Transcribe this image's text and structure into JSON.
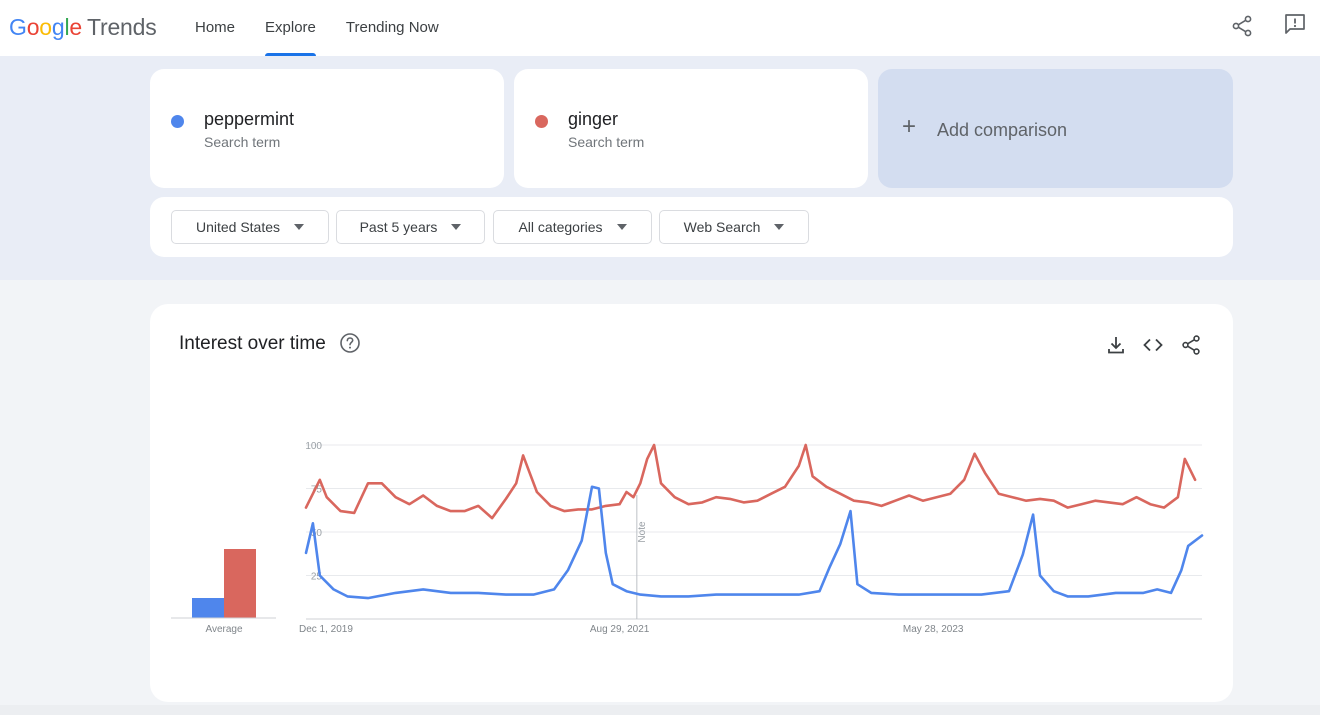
{
  "header": {
    "logo_text": "Google",
    "logo_suffix": "Trends",
    "nav": [
      {
        "label": "Home",
        "active": false
      },
      {
        "label": "Explore",
        "active": true
      },
      {
        "label": "Trending Now",
        "active": false
      }
    ],
    "icons": [
      "share-icon",
      "feedback-icon"
    ]
  },
  "compare": {
    "terms": [
      {
        "name": "peppermint",
        "type": "Search term",
        "color": "#4f86ec"
      },
      {
        "name": "ginger",
        "type": "Search term",
        "color": "#d9675e"
      }
    ],
    "add_label": "Add comparison"
  },
  "filters": [
    {
      "label": "United States"
    },
    {
      "label": "Past 5 years"
    },
    {
      "label": "All categories"
    },
    {
      "label": "Web Search"
    }
  ],
  "interest": {
    "title": "Interest over time",
    "icons": [
      "help-icon",
      "download-icon",
      "embed-icon",
      "share-icon"
    ],
    "average_label": "Average",
    "note_label": "Note"
  },
  "chart_data": {
    "type": "line",
    "xlabel": "",
    "ylabel": "",
    "ylim": [
      0,
      100
    ],
    "y_ticks": [
      25,
      50,
      75,
      100
    ],
    "x_tick_labels": [
      "Dec 1, 2019",
      "Aug 29, 2021",
      "May 28, 2023"
    ],
    "x_range": [
      "2019-12-01",
      "2024-11-24"
    ],
    "note_date": "2021-10-03",
    "grid": true,
    "legend": "none",
    "average": [
      {
        "name": "peppermint",
        "value": 20,
        "color": "#4f86ec"
      },
      {
        "name": "ginger",
        "value": 69,
        "color": "#d9675e"
      }
    ],
    "series": [
      {
        "name": "peppermint",
        "color": "#4f86ec",
        "points": [
          [
            "2019-12-01",
            38
          ],
          [
            "2019-12-15",
            55
          ],
          [
            "2019-12-29",
            25
          ],
          [
            "2020-01-26",
            17
          ],
          [
            "2020-02-23",
            13
          ],
          [
            "2020-04-05",
            12
          ],
          [
            "2020-05-31",
            15
          ],
          [
            "2020-07-26",
            17
          ],
          [
            "2020-09-20",
            15
          ],
          [
            "2020-11-15",
            15
          ],
          [
            "2021-01-10",
            14
          ],
          [
            "2021-03-07",
            14
          ],
          [
            "2021-04-18",
            17
          ],
          [
            "2021-05-16",
            28
          ],
          [
            "2021-06-13",
            45
          ],
          [
            "2021-07-04",
            76
          ],
          [
            "2021-07-18",
            75
          ],
          [
            "2021-08-01",
            38
          ],
          [
            "2021-08-15",
            20
          ],
          [
            "2021-09-12",
            16
          ],
          [
            "2021-10-10",
            14
          ],
          [
            "2021-11-21",
            13
          ],
          [
            "2022-01-16",
            13
          ],
          [
            "2022-03-13",
            14
          ],
          [
            "2022-05-08",
            14
          ],
          [
            "2022-07-03",
            14
          ],
          [
            "2022-08-28",
            14
          ],
          [
            "2022-10-09",
            16
          ],
          [
            "2022-10-30",
            30
          ],
          [
            "2022-11-20",
            43
          ],
          [
            "2022-12-11",
            62
          ],
          [
            "2022-12-25",
            20
          ],
          [
            "2023-01-22",
            15
          ],
          [
            "2023-03-19",
            14
          ],
          [
            "2023-05-14",
            14
          ],
          [
            "2023-07-09",
            14
          ],
          [
            "2023-09-03",
            14
          ],
          [
            "2023-10-29",
            16
          ],
          [
            "2023-11-26",
            37
          ],
          [
            "2023-12-17",
            60
          ],
          [
            "2023-12-31",
            25
          ],
          [
            "2024-01-28",
            16
          ],
          [
            "2024-02-25",
            13
          ],
          [
            "2024-04-07",
            13
          ],
          [
            "2024-06-02",
            15
          ],
          [
            "2024-07-28",
            15
          ],
          [
            "2024-08-25",
            17
          ],
          [
            "2024-09-22",
            15
          ],
          [
            "2024-10-13",
            28
          ],
          [
            "2024-10-27",
            42
          ],
          [
            "2024-11-24",
            48
          ]
        ]
      },
      {
        "name": "ginger",
        "color": "#d9675e",
        "points": [
          [
            "2019-12-01",
            64
          ],
          [
            "2019-12-15",
            72
          ],
          [
            "2019-12-29",
            80
          ],
          [
            "2020-01-12",
            70
          ],
          [
            "2020-02-09",
            62
          ],
          [
            "2020-03-08",
            61
          ],
          [
            "2020-04-05",
            78
          ],
          [
            "2020-05-03",
            78
          ],
          [
            "2020-05-31",
            70
          ],
          [
            "2020-06-28",
            66
          ],
          [
            "2020-07-26",
            71
          ],
          [
            "2020-08-23",
            65
          ],
          [
            "2020-09-20",
            62
          ],
          [
            "2020-10-18",
            62
          ],
          [
            "2020-11-15",
            65
          ],
          [
            "2020-12-13",
            58
          ],
          [
            "2021-01-10",
            69
          ],
          [
            "2021-01-31",
            78
          ],
          [
            "2021-02-14",
            94
          ],
          [
            "2021-03-14",
            73
          ],
          [
            "2021-04-11",
            65
          ],
          [
            "2021-05-09",
            62
          ],
          [
            "2021-06-06",
            63
          ],
          [
            "2021-07-04",
            63
          ],
          [
            "2021-08-01",
            65
          ],
          [
            "2021-08-29",
            66
          ],
          [
            "2021-09-12",
            73
          ],
          [
            "2021-09-26",
            70
          ],
          [
            "2021-10-10",
            78
          ],
          [
            "2021-10-24",
            92
          ],
          [
            "2021-11-07",
            100
          ],
          [
            "2021-11-21",
            78
          ],
          [
            "2021-12-19",
            70
          ],
          [
            "2022-01-16",
            66
          ],
          [
            "2022-02-13",
            67
          ],
          [
            "2022-03-13",
            70
          ],
          [
            "2022-04-10",
            69
          ],
          [
            "2022-05-08",
            67
          ],
          [
            "2022-06-05",
            68
          ],
          [
            "2022-07-03",
            72
          ],
          [
            "2022-07-31",
            76
          ],
          [
            "2022-08-28",
            88
          ],
          [
            "2022-09-11",
            100
          ],
          [
            "2022-09-25",
            82
          ],
          [
            "2022-10-23",
            76
          ],
          [
            "2022-11-20",
            72
          ],
          [
            "2022-12-18",
            68
          ],
          [
            "2023-01-15",
            67
          ],
          [
            "2023-02-12",
            65
          ],
          [
            "2023-03-12",
            68
          ],
          [
            "2023-04-09",
            71
          ],
          [
            "2023-05-07",
            68
          ],
          [
            "2023-06-04",
            70
          ],
          [
            "2023-07-02",
            72
          ],
          [
            "2023-07-30",
            80
          ],
          [
            "2023-08-20",
            95
          ],
          [
            "2023-09-10",
            84
          ],
          [
            "2023-10-08",
            72
          ],
          [
            "2023-11-05",
            70
          ],
          [
            "2023-12-03",
            68
          ],
          [
            "2023-12-31",
            69
          ],
          [
            "2024-01-28",
            68
          ],
          [
            "2024-02-25",
            64
          ],
          [
            "2024-03-24",
            66
          ],
          [
            "2024-04-21",
            68
          ],
          [
            "2024-05-19",
            67
          ],
          [
            "2024-06-16",
            66
          ],
          [
            "2024-07-14",
            70
          ],
          [
            "2024-08-11",
            66
          ],
          [
            "2024-09-08",
            64
          ],
          [
            "2024-10-06",
            70
          ],
          [
            "2024-10-20",
            92
          ],
          [
            "2024-11-10",
            80
          ]
        ]
      }
    ]
  }
}
